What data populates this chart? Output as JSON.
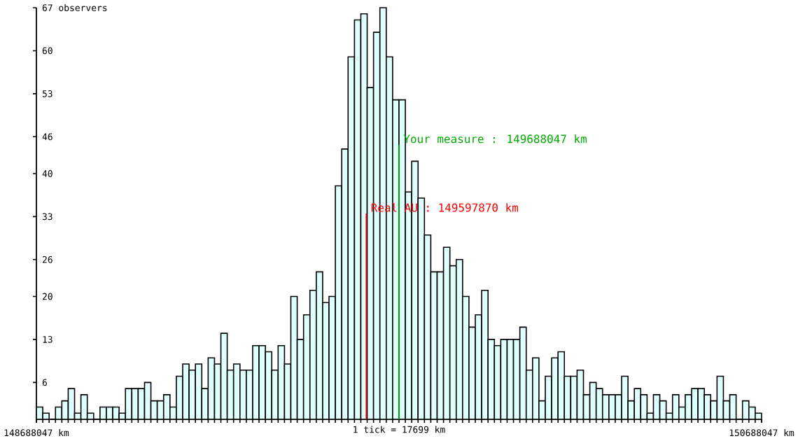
{
  "chart_data": {
    "type": "histogram",
    "xlabel": "1 tick = 17699 km",
    "color": "#e0ffff",
    "bins": [
      148688047,
      148705590,
      148723133,
      148740676,
      148758219,
      148775762,
      148793305,
      148810848,
      148828391,
      148845934,
      148863477,
      148881020,
      148898563,
      148916106,
      148933649,
      148951192,
      148968735,
      148986278,
      149003821,
      149021364,
      149038907,
      149056450,
      149073993,
      149091536,
      149109079,
      149126622,
      149144165,
      149161708,
      149179251,
      149196794,
      149214337,
      149231880,
      149249423,
      149266966,
      149284509,
      149302052,
      149319595,
      149337138,
      149354681,
      149372224,
      149389767,
      149407310,
      149424853,
      149442396,
      149459939,
      149477482,
      149495025,
      149512568,
      149530111,
      149547654,
      149565197,
      149582740,
      149600283,
      149617826,
      149635369,
      149652912,
      149670455,
      149687998,
      149705541,
      149723084,
      149740627,
      149758170,
      149775713,
      149793256,
      149810799,
      149828342,
      149845885,
      149863428,
      149880971,
      149898514,
      149916057,
      149933600,
      149951143,
      149968686,
      149986229,
      150003772,
      150021315,
      150038858,
      150056401,
      150073944,
      150091487,
      150109030,
      150126573,
      150144116,
      150161659,
      150179202,
      150196745,
      150214288,
      150231831,
      150249374,
      150266917,
      150284460,
      150302003,
      150319546,
      150337089,
      150354632,
      150372175,
      150389718,
      150407261,
      150424804,
      150442347,
      150459890,
      150477433,
      150494976,
      150512519,
      150530062,
      150547605,
      150565148,
      150582691,
      150600234,
      150617777,
      150635320,
      150652863,
      150670406,
      150687949
    ],
    "values": [
      2,
      1,
      0,
      2,
      3,
      5,
      1,
      4,
      1,
      0,
      2,
      2,
      2,
      1,
      5,
      5,
      5,
      6,
      3,
      3,
      4,
      2,
      7,
      9,
      8,
      9,
      5,
      10,
      9,
      14,
      8,
      9,
      8,
      8,
      12,
      12,
      11,
      8,
      12,
      9,
      20,
      13,
      17,
      21,
      24,
      19,
      20,
      38,
      44,
      59,
      65,
      66,
      54,
      63,
      67,
      59,
      52,
      52,
      37,
      42,
      36,
      30,
      24,
      24,
      28,
      25,
      26,
      20,
      15,
      17,
      21,
      13,
      12,
      13,
      13,
      13,
      15,
      8,
      10,
      3,
      7,
      10,
      11,
      7,
      7,
      8,
      4,
      6,
      5,
      4,
      4,
      4,
      7,
      3,
      5,
      4,
      1,
      4,
      3,
      1,
      4,
      2,
      4,
      5,
      5,
      4,
      3,
      7,
      3,
      4,
      0,
      3,
      2,
      1
    ],
    "xlim": [
      148688047,
      150688047
    ],
    "ylim": [
      0,
      67
    ],
    "xticks": [
      {
        "value": 148688047,
        "label": "148688047 km"
      },
      {
        "value": 150688047,
        "label": "150688047 km"
      }
    ],
    "yticks": [
      6,
      13,
      20,
      26,
      33,
      40,
      46,
      53,
      60,
      {
        "value": 67,
        "label": "67 observers"
      }
    ],
    "ref_lines": [
      {
        "axis": "x",
        "value": 149597870,
        "label": "Real AU : 149597870 km",
        "color": "#ff0000"
      },
      {
        "axis": "x",
        "value": 149688047,
        "label": "Your measure : 149688047 km",
        "color": "#00aa00"
      }
    ]
  }
}
